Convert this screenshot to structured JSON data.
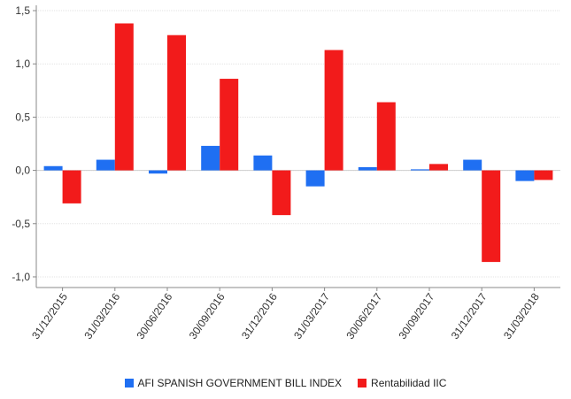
{
  "chart_data": {
    "type": "bar",
    "categories": [
      "31/12/2015",
      "31/03/2016",
      "30/06/2016",
      "30/09/2016",
      "31/12/2016",
      "31/03/2017",
      "30/06/2017",
      "30/09/2017",
      "31/12/2017",
      "31/03/2018"
    ],
    "series": [
      {
        "name": "AFI SPANISH GOVERNMENT BILL INDEX",
        "color": "#1f6ff2",
        "values": [
          0.04,
          0.1,
          -0.03,
          0.23,
          0.14,
          -0.15,
          0.03,
          0.01,
          0.1,
          -0.1
        ]
      },
      {
        "name": "Rentabilidad IIC",
        "color": "#f21b1b",
        "values": [
          -0.31,
          1.38,
          1.27,
          0.86,
          -0.42,
          1.13,
          0.64,
          0.06,
          -0.86,
          -0.09
        ]
      }
    ],
    "title": "",
    "xlabel": "",
    "ylabel": "",
    "ylim": [
      -1.1,
      1.55
    ],
    "yticks": [
      "-1,0",
      "-0,5",
      "0,0",
      "0,5",
      "1,0",
      "1,5"
    ],
    "ytick_values": [
      -1.0,
      -0.5,
      0.0,
      0.5,
      1.0,
      1.5
    ],
    "grid": true,
    "legend_position": "bottom-center"
  }
}
